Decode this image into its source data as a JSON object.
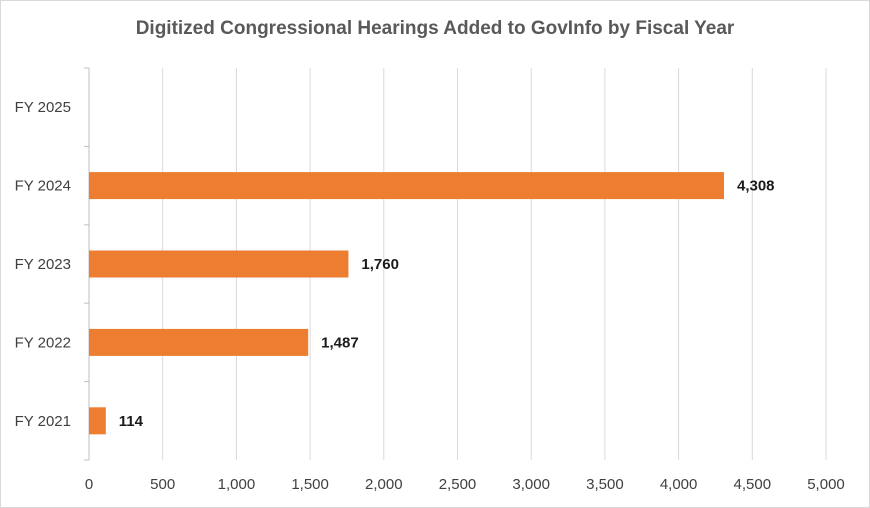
{
  "chart_data": {
    "type": "bar",
    "orientation": "horizontal",
    "title": "Digitized Congressional Hearings Added to GovInfo by Fiscal Year",
    "categories": [
      "FY 2021",
      "FY 2022",
      "FY 2023",
      "FY 2024",
      "FY 2025"
    ],
    "values": [
      114,
      1487,
      1760,
      4308,
      null
    ],
    "data_labels": [
      "114",
      "1,487",
      "1,760",
      "4,308",
      ""
    ],
    "xlim": [
      0,
      5000
    ],
    "x_ticks": [
      0,
      500,
      1000,
      1500,
      2000,
      2500,
      3000,
      3500,
      4000,
      4500,
      5000
    ],
    "x_tick_labels": [
      "0",
      "500",
      "1,000",
      "1,500",
      "2,000",
      "2,500",
      "3,000",
      "3,500",
      "4,000",
      "4,500",
      "5,000"
    ],
    "xlabel": "",
    "ylabel": "",
    "grid": "vertical",
    "legend": "none",
    "bar_color": "#ED7D31"
  }
}
